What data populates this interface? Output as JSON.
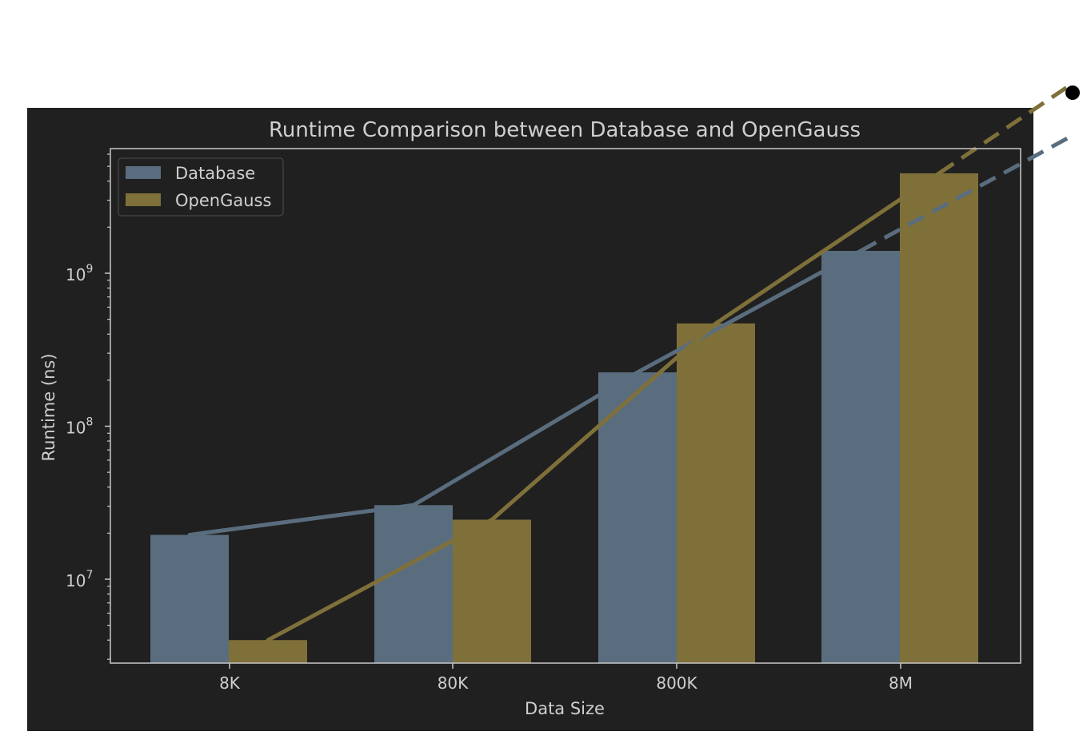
{
  "colors": {
    "figure_background": "#202020",
    "page_background": "#ffffff",
    "axes_edge": "#c8c8c8",
    "text": "#cfcfcf",
    "database": "#5a6d7e",
    "opengauss": "#7f703a"
  },
  "chart_data": {
    "type": "bar",
    "title": "Runtime Comparison between Database and OpenGauss",
    "xlabel": "Data Size",
    "ylabel": "Runtime (ns)",
    "yscale": "log",
    "ylim": [
      2800000,
      6500000000
    ],
    "y_ticks": [
      {
        "value": 10000000,
        "base": "10",
        "exp": "7"
      },
      {
        "value": 100000000,
        "base": "10",
        "exp": "8"
      },
      {
        "value": 1000000000,
        "base": "10",
        "exp": "9"
      }
    ],
    "categories": [
      "8K",
      "80K",
      "800K",
      "8M"
    ],
    "series": [
      {
        "name": "Database",
        "color": "#5a6d7e",
        "values": [
          19500000,
          30500000,
          225000000,
          1400000000
        ]
      },
      {
        "name": "OpenGauss",
        "color": "#7f703a",
        "values": [
          4000000,
          24500000,
          470000000,
          4500000000
        ]
      }
    ],
    "legend_position": "upper-left",
    "grid": false
  }
}
